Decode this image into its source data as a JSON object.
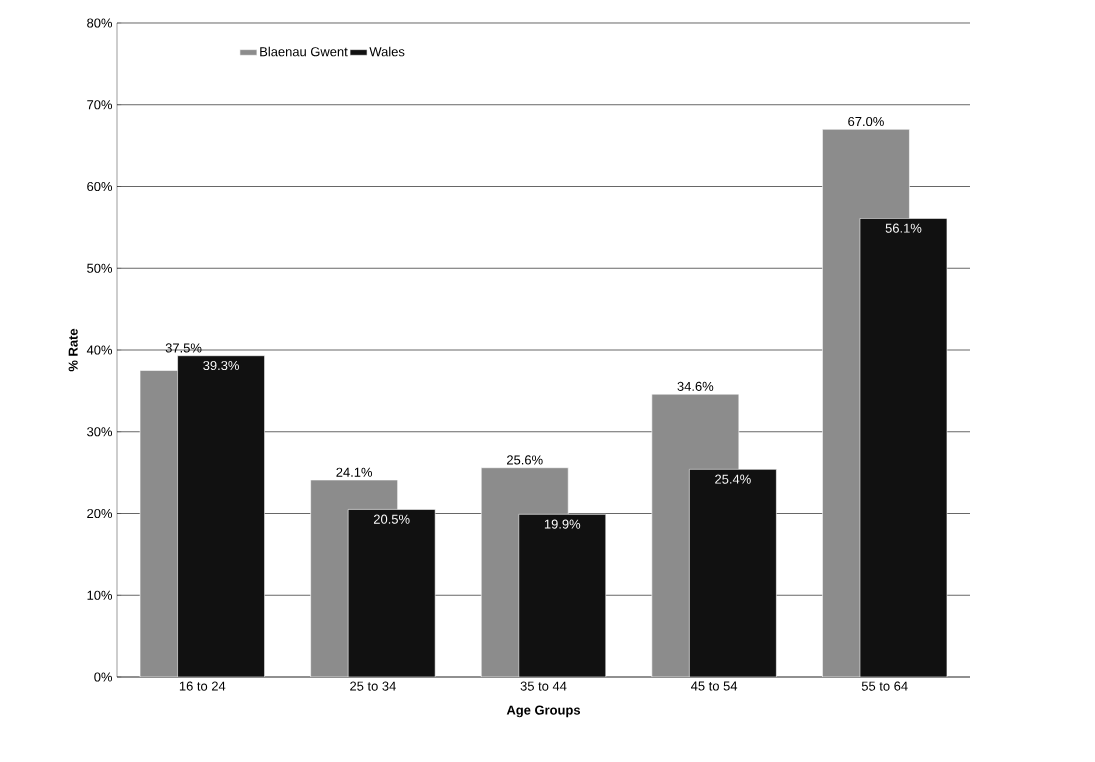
{
  "chart_data": {
    "type": "bar",
    "xlabel": "Age Groups",
    "ylabel": "% Rate",
    "categories": [
      "16 to 24",
      "25 to 34",
      "35 to 44",
      "45 to 54",
      "55 to 64"
    ],
    "series": [
      {
        "name": "Blaenau Gwent",
        "color": "#8c8c8c",
        "values": [
          37.5,
          24.1,
          25.6,
          34.6,
          67.0
        ],
        "value_labels": [
          "37.5%",
          "24.1%",
          "25.6%",
          "34.6%",
          "67.0%"
        ]
      },
      {
        "name": "Wales",
        "color": "#111111",
        "values": [
          39.3,
          20.5,
          19.9,
          25.4,
          56.1
        ],
        "value_labels": [
          "39.3%",
          "20.5%",
          "19.9%",
          "25.4%",
          "56.1%"
        ]
      }
    ],
    "ylim": [
      0,
      80
    ],
    "yticks": [
      {
        "value": 0,
        "label": "0%"
      },
      {
        "value": 10,
        "label": "10%"
      },
      {
        "value": 20,
        "label": "20%"
      },
      {
        "value": 30,
        "label": "30%"
      },
      {
        "value": 40,
        "label": "40%"
      },
      {
        "value": 50,
        "label": "50%"
      },
      {
        "value": 60,
        "label": "60%"
      },
      {
        "value": 70,
        "label": "70%"
      },
      {
        "value": 80,
        "label": "80%"
      }
    ],
    "grid": "y",
    "legend": "top left"
  }
}
